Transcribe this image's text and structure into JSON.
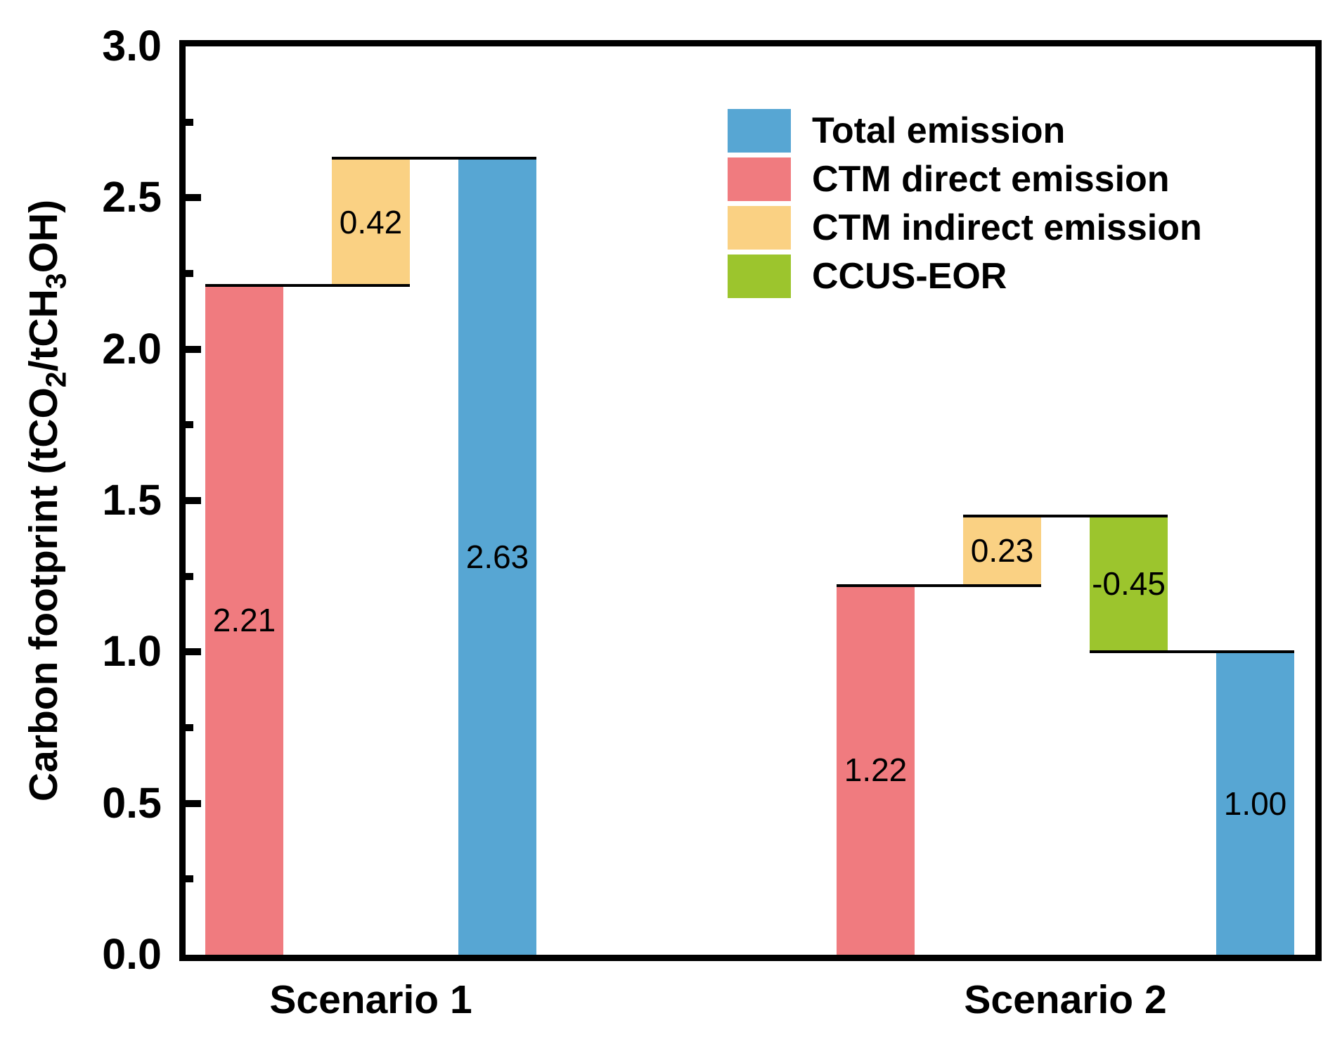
{
  "chart_data": {
    "type": "bar",
    "subtype": "waterfall-grouped",
    "title": "",
    "ylabel": "Carbon footprint (tCO2/tCH3OH)",
    "ylabel_rich": [
      [
        "text",
        "Carbon footprint (tCO"
      ],
      [
        "sub",
        "2"
      ],
      [
        "text",
        "/tCH"
      ],
      [
        "sub",
        "3"
      ],
      [
        "text",
        "OH)"
      ]
    ],
    "xlabel": "",
    "ylim": [
      0.0,
      3.0
    ],
    "ytick_major": [
      0.0,
      0.5,
      1.0,
      1.5,
      2.0,
      2.5,
      3.0
    ],
    "ytick_labels": [
      "0.0",
      "0.5",
      "1.0",
      "1.5",
      "2.0",
      "2.5",
      "3.0"
    ],
    "ytick_minor": [
      0.25,
      0.75,
      1.25,
      1.75,
      2.25,
      2.75
    ],
    "grid": false,
    "categories": [
      "Scenario 1",
      "Scenario 2"
    ],
    "series": [
      {
        "name": "Total emission",
        "color": "#57A6D3"
      },
      {
        "name": "CTM direct emission",
        "color": "#F07B7F"
      },
      {
        "name": "CTM indirect emission",
        "color": "#FAD183"
      },
      {
        "name": "CCUS-EOR",
        "color": "#9CC52D"
      }
    ],
    "legend": {
      "position": "upper-right",
      "entries": [
        "Total emission",
        "CTM direct emission",
        "CTM indirect emission",
        "CCUS-EOR"
      ]
    },
    "bars": [
      {
        "category": 0,
        "slot": 0,
        "series": "CTM direct emission",
        "from": 0,
        "to": 2.21,
        "value": 2.21,
        "label": "2.21"
      },
      {
        "category": 0,
        "slot": 1,
        "series": "CTM indirect emission",
        "from": 2.21,
        "to": 2.63,
        "value": 0.42,
        "label": "0.42"
      },
      {
        "category": 0,
        "slot": 2,
        "series": "Total emission",
        "from": 0,
        "to": 2.63,
        "value": 2.63,
        "label": "2.63"
      },
      {
        "category": 1,
        "slot": 0,
        "series": "CTM direct emission",
        "from": 0,
        "to": 1.22,
        "value": 1.22,
        "label": "1.22"
      },
      {
        "category": 1,
        "slot": 1,
        "series": "CTM indirect emission",
        "from": 1.22,
        "to": 1.45,
        "value": 0.23,
        "label": "0.23"
      },
      {
        "category": 1,
        "slot": 2,
        "series": "CCUS-EOR",
        "from": 1.45,
        "to": 1.0,
        "value": -0.45,
        "label": "-0.45"
      },
      {
        "category": 1,
        "slot": 3,
        "series": "Total emission",
        "from": 0,
        "to": 1.0,
        "value": 1.0,
        "label": "1.00"
      }
    ],
    "line_color": "#000000",
    "axis_color": "#000000"
  }
}
